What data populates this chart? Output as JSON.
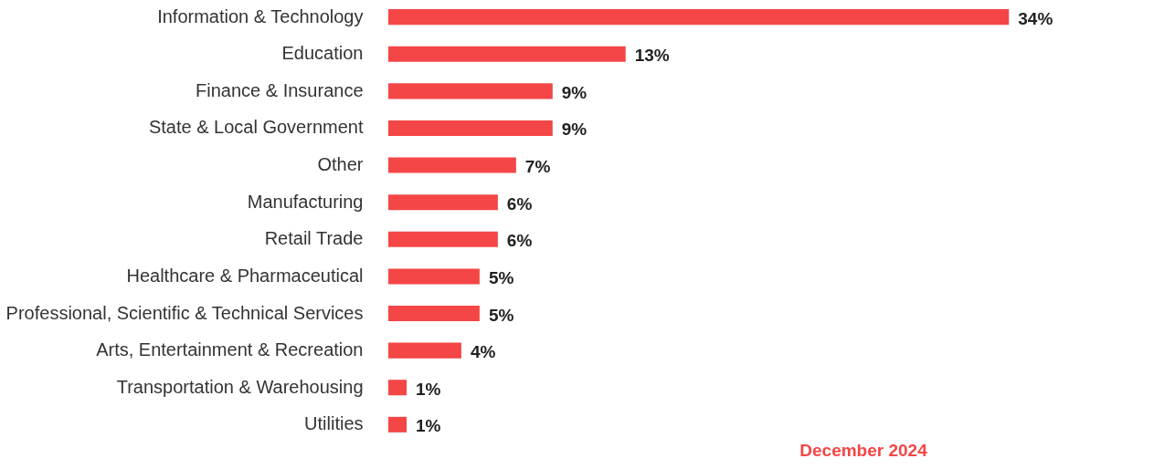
{
  "chart_data": {
    "type": "bar",
    "orientation": "horizontal",
    "categories": [
      "Information & Technology",
      "Education",
      "Finance & Insurance",
      "State & Local Government",
      "Other",
      "Manufacturing",
      "Retail Trade",
      "Healthcare & Pharmaceutical",
      "Professional, Scientific & Technical Services",
      "Arts, Entertainment & Recreation",
      "Transportation & Warehousing",
      "Utilities"
    ],
    "values": [
      34,
      13,
      9,
      9,
      7,
      6,
      6,
      5,
      5,
      4,
      1,
      1
    ],
    "value_labels": [
      "34%",
      "13%",
      "9%",
      "9%",
      "7%",
      "6%",
      "6%",
      "5%",
      "5%",
      "4%",
      "1%",
      "1%"
    ],
    "color": "#f44646",
    "annotations": [
      "December 2024"
    ]
  }
}
